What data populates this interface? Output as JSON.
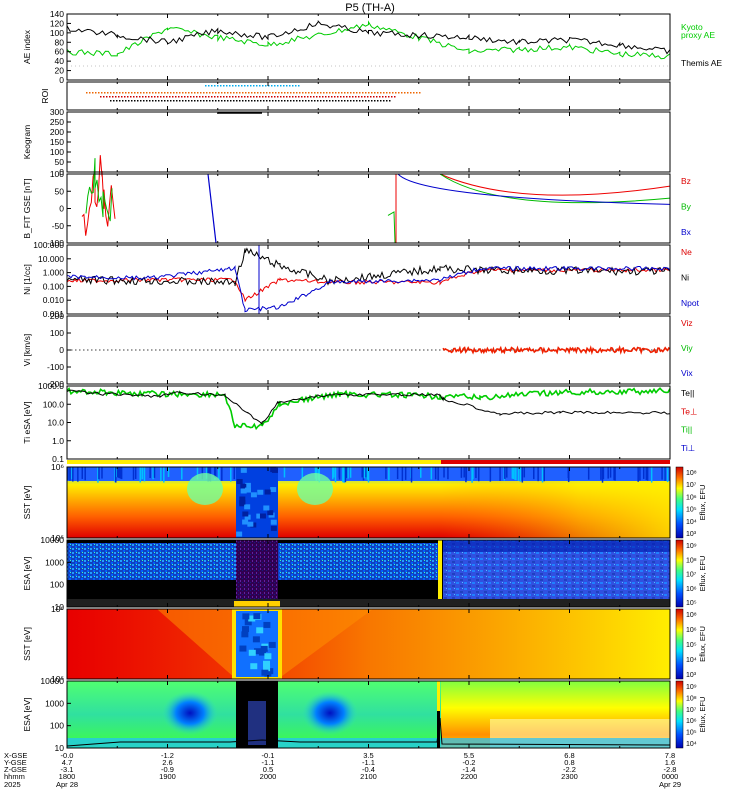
{
  "title": "P5 (TH-A)",
  "panels": [
    {
      "id": "ae",
      "ylabel": "AE index",
      "ticks": [
        "140",
        "120",
        "100",
        "80",
        "60",
        "40",
        "20",
        "0"
      ],
      "legend": [
        {
          "text": "Kyoto",
          "color": "#00cc00"
        },
        {
          "text": "proxy AE",
          "color": "#00cc00"
        },
        {
          "text": "Themis AE",
          "color": "#000000"
        }
      ]
    },
    {
      "id": "roi",
      "ylabel": "ROI",
      "ticks": []
    },
    {
      "id": "keogram",
      "ylabel": "Keogram",
      "ticks": [
        "300",
        "250",
        "200",
        "150",
        "100",
        "50",
        "0"
      ]
    },
    {
      "id": "bfield",
      "ylabel": "B_FIT GSE [nT]",
      "ticks": [
        "100",
        "50",
        "0",
        "-50",
        "-100"
      ],
      "legend": [
        {
          "text": "Bz",
          "color": "#dd0000"
        },
        {
          "text": "By",
          "color": "#00bb00"
        },
        {
          "text": "Bx",
          "color": "#0000cc"
        }
      ]
    },
    {
      "id": "density",
      "ylabel": "Ni [1/cc]",
      "ticks": [
        "100.000",
        "10.000",
        "1.000",
        "0.100",
        "0.010",
        "0.001"
      ],
      "legend": [
        {
          "text": "Ne",
          "color": "#dd0000"
        },
        {
          "text": "Ni",
          "color": "#000000"
        },
        {
          "text": "Npot",
          "color": "#0000cc"
        }
      ]
    },
    {
      "id": "velocity",
      "ylabel": "Vi [km/s]",
      "ticks": [
        "200",
        "100",
        "0",
        "-100",
        "-200"
      ],
      "legend": [
        {
          "text": "Viz",
          "color": "#dd0000"
        },
        {
          "text": "Viy",
          "color": "#00bb00"
        },
        {
          "text": "Vix",
          "color": "#0000cc"
        }
      ]
    },
    {
      "id": "temperature",
      "ylabel": "Ti eSA [eV]",
      "ticks": [
        "1000.0",
        "100.0",
        "10.0",
        "1.0",
        "0.1"
      ],
      "legend": [
        {
          "text": "Te||",
          "color": "#000000"
        },
        {
          "text": "Te⊥",
          "color": "#dd0000"
        },
        {
          "text": "Ti||",
          "color": "#00bb00"
        },
        {
          "text": "Ti⊥",
          "color": "#0000cc"
        }
      ]
    },
    {
      "id": "sst_e",
      "ylabel": "SST [eV]",
      "ticks": [
        "10⁶",
        "10⁵"
      ],
      "cbar_label": "Eflux, EFU",
      "cbar_ticks": [
        "10⁸",
        "10⁷",
        "10⁶",
        "10⁵",
        "10⁴",
        "10³"
      ]
    },
    {
      "id": "esa_e",
      "ylabel": "ESA [eV]",
      "ticks": [
        "10000",
        "1000",
        "100",
        "10"
      ],
      "cbar_label": "Eflux, EFU",
      "cbar_ticks": [
        "10⁹",
        "10⁸",
        "10⁷",
        "10⁶",
        "10⁵"
      ]
    },
    {
      "id": "sst_i",
      "ylabel": "SST [eV]",
      "ticks": [
        "10⁶",
        "10⁵"
      ],
      "cbar_label": "Eflux, EFU",
      "cbar_ticks": [
        "10⁸",
        "10⁶",
        "10⁵",
        "10⁴",
        "10³"
      ]
    },
    {
      "id": "esa_i",
      "ylabel": "ESA [eV]",
      "ticks": [
        "10000",
        "1000",
        "100",
        "10"
      ],
      "cbar_label": "Eflux, EFU",
      "cbar_ticks": [
        "10⁹",
        "10⁸",
        "10⁷",
        "10⁶",
        "10⁵",
        "10⁴"
      ]
    }
  ],
  "xaxis": {
    "row_labels": [
      "X-GSE",
      "Y-GSE",
      "Z-GSE",
      "hhmm",
      "2025"
    ],
    "columns": [
      {
        "x": "-0.0",
        "y": "4.7",
        "z": "-3.1",
        "t": "1800",
        "d": "Apr 28"
      },
      {
        "x": "-1.2",
        "y": "2.6",
        "z": "-0.9",
        "t": "1900",
        "d": ""
      },
      {
        "x": "-0.1",
        "y": "-1.1",
        "z": "0.5",
        "t": "2000",
        "d": ""
      },
      {
        "x": "3.5",
        "y": "-1.1",
        "z": "-0.4",
        "t": "2100",
        "d": ""
      },
      {
        "x": "5.5",
        "y": "-0.2",
        "z": "-1.4",
        "t": "2200",
        "d": ""
      },
      {
        "x": "6.8",
        "y": "0.8",
        "z": "-2.2",
        "t": "2300",
        "d": ""
      },
      {
        "x": "7.8",
        "y": "1.6",
        "z": "-2.8",
        "t": "0000",
        "d": "Apr 29"
      }
    ]
  },
  "chart_data": [
    {
      "type": "line",
      "title": "P5 (TH-A)",
      "ylabel": "AE index",
      "ylim": [
        0,
        140
      ],
      "x": [
        "1800",
        "1830",
        "1900",
        "1930",
        "2000",
        "2030",
        "2100",
        "2130",
        "2200",
        "2230",
        "2300",
        "2330",
        "0000"
      ],
      "series": [
        {
          "name": "Kyoto proxy AE",
          "values": [
            60,
            55,
            110,
            90,
            75,
            95,
            118,
            90,
            60,
            65,
            70,
            55,
            50
          ]
        },
        {
          "name": "Themis AE",
          "values": [
            110,
            95,
            80,
            105,
            90,
            120,
            100,
            95,
            90,
            80,
            85,
            75,
            60
          ]
        }
      ]
    },
    {
      "type": "line",
      "ylabel": "B_FIT GSE [nT]",
      "ylim": [
        -100,
        100
      ],
      "series": [
        {
          "name": "Bz",
          "values": [
            90,
            -80,
            10,
            null,
            -100,
            null,
            80,
            65,
            60
          ]
        },
        {
          "name": "By",
          "values": [
            90,
            -40,
            10,
            null,
            -100,
            null,
            95,
            50,
            30
          ]
        },
        {
          "name": "Bx",
          "values": [
            50,
            20,
            null,
            -100,
            null,
            null,
            100,
            20,
            10
          ]
        }
      ]
    },
    {
      "type": "line",
      "ylabel": "Ni [1/cc]",
      "ylim": [
        0.001,
        100
      ],
      "series": [
        {
          "name": "Ne",
          "values": [
            0.2,
            0.3,
            0.3,
            0.01,
            0.3,
            0.2,
            1.5,
            1.5,
            1.5
          ]
        },
        {
          "name": "Ni",
          "values": [
            0.3,
            0.2,
            0.2,
            10,
            3,
            0.2,
            2,
            1.5,
            1.2
          ]
        },
        {
          "name": "Npot",
          "values": [
            0.5,
            1.5,
            2,
            0.002,
            0.1,
            0.2,
            2,
            2,
            2
          ]
        }
      ]
    },
    {
      "type": "line",
      "ylabel": "Vi [km/s]",
      "ylim": [
        -300,
        300
      ],
      "series": [
        {
          "name": "Viz",
          "values": [
            0,
            0,
            0,
            0,
            0,
            0,
            0,
            0,
            0
          ]
        }
      ]
    },
    {
      "type": "line",
      "ylabel": "Ti eSA [eV]",
      "ylim": [
        0.1,
        3000
      ],
      "series": [
        {
          "name": "Te||",
          "values": [
            1500,
            1000,
            800,
            20,
            900,
            900,
            200,
            60,
            70
          ]
        },
        {
          "name": "Ti||",
          "values": [
            1500,
            1200,
            900,
            10,
            300,
            1000,
            600,
            1200,
            1500
          ]
        }
      ]
    }
  ]
}
